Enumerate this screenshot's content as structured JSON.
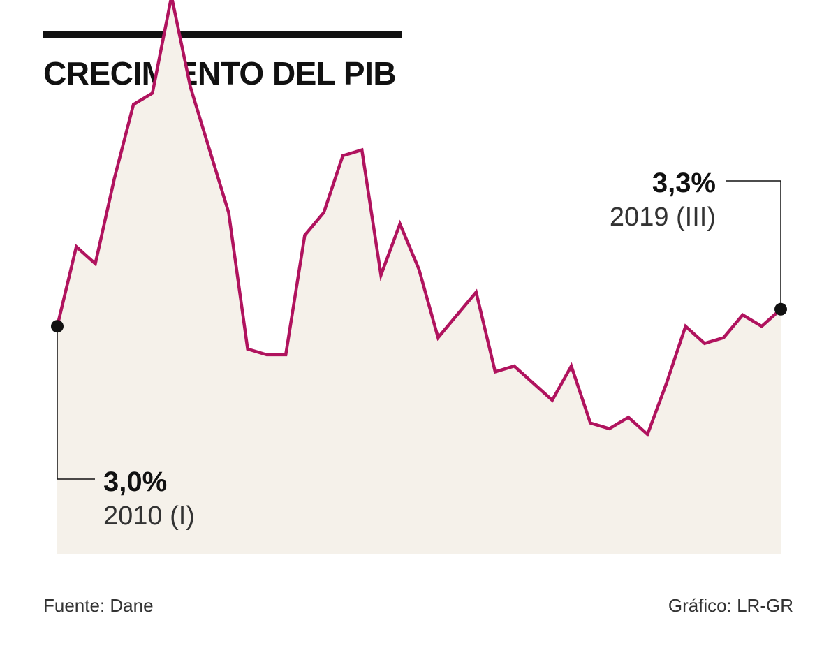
{
  "title": "CRECIMIENTO DEL PIB",
  "colors": {
    "line": "#B0135E",
    "area": "#F5F1EA",
    "marker": "#111111",
    "text": "#111111"
  },
  "chart_data": {
    "type": "area",
    "title": "CRECIMIENTO DEL PIB",
    "xlabel": "",
    "ylabel": "",
    "x_start": "2010 (I)",
    "x_end": "2019 (III)",
    "ylim": [
      -1,
      8
    ],
    "grid": false,
    "legend": "none",
    "series": [
      {
        "values": [
          3.0,
          4.4,
          4.1,
          5.6,
          6.9,
          7.1,
          8.8,
          7.2,
          6.1,
          5.0,
          2.6,
          2.5,
          2.5,
          4.6,
          5.0,
          6.0,
          6.1,
          3.9,
          4.8,
          4.0,
          2.8,
          3.2,
          3.6,
          2.2,
          2.3,
          2.0,
          1.7,
          2.3,
          1.3,
          1.2,
          1.4,
          1.1,
          2.0,
          3.0,
          2.7,
          2.8,
          3.2,
          3.0,
          3.3
        ]
      }
    ],
    "annotations": [
      {
        "value_label": "3,0%",
        "period_label": "2010 (I)",
        "point_index": 0
      },
      {
        "value_label": "3,3%",
        "period_label": "2019 (III)",
        "point_index": 38
      }
    ]
  },
  "footer": {
    "source": "Fuente: Dane",
    "credit": "Gráfico: LR-GR"
  }
}
